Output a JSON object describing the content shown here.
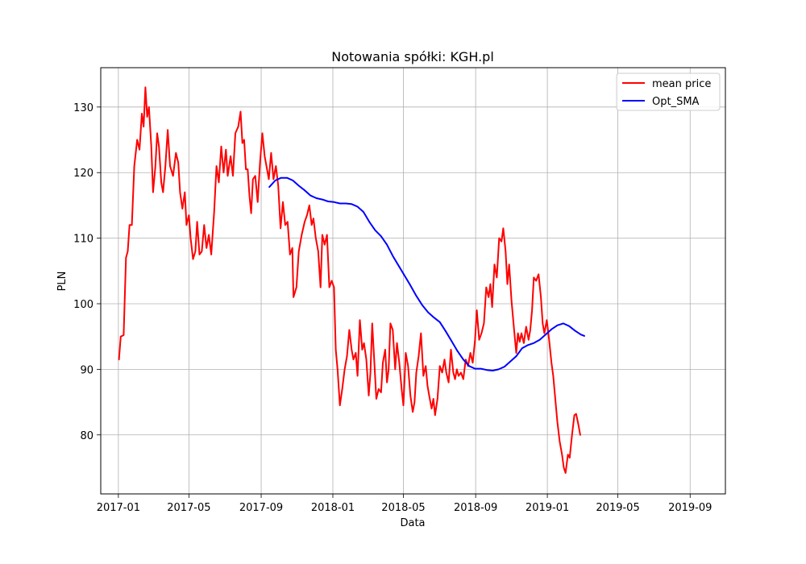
{
  "chart_data": {
    "type": "line",
    "title": "Notowania spółki: KGH.pl",
    "xlabel": "Data",
    "ylabel": "PLN",
    "xlim": [
      "2016-12-02",
      "2019-10-31"
    ],
    "ylim": [
      71,
      136
    ],
    "x_ticks": [
      "2017-01",
      "2017-05",
      "2017-09",
      "2018-01",
      "2018-05",
      "2018-09",
      "2019-01",
      "2019-05",
      "2019-09"
    ],
    "y_ticks": [
      80,
      90,
      100,
      110,
      120,
      130
    ],
    "grid": true,
    "legend_position": "upper right",
    "series": [
      {
        "name": "mean price",
        "color": "#ff0000",
        "points": [
          [
            "2017-01-02",
            91.5
          ],
          [
            "2017-01-05",
            95
          ],
          [
            "2017-01-10",
            95.2
          ],
          [
            "2017-01-14",
            107
          ],
          [
            "2017-01-17",
            108
          ],
          [
            "2017-01-20",
            112
          ],
          [
            "2017-01-24",
            112
          ],
          [
            "2017-01-28",
            121
          ],
          [
            "2017-02-02",
            125
          ],
          [
            "2017-02-06",
            123.5
          ],
          [
            "2017-02-10",
            129
          ],
          [
            "2017-02-13",
            127
          ],
          [
            "2017-02-16",
            133
          ],
          [
            "2017-02-19",
            128.5
          ],
          [
            "2017-02-22",
            130
          ],
          [
            "2017-02-26",
            124
          ],
          [
            "2017-03-01",
            117
          ],
          [
            "2017-03-05",
            121
          ],
          [
            "2017-03-08",
            126
          ],
          [
            "2017-03-11",
            124
          ],
          [
            "2017-03-15",
            118.5
          ],
          [
            "2017-03-18",
            117
          ],
          [
            "2017-03-22",
            121
          ],
          [
            "2017-03-26",
            126.5
          ],
          [
            "2017-03-30",
            121
          ],
          [
            "2017-04-04",
            119.5
          ],
          [
            "2017-04-09",
            123
          ],
          [
            "2017-04-13",
            121.5
          ],
          [
            "2017-04-16",
            117
          ],
          [
            "2017-04-20",
            114.5
          ],
          [
            "2017-04-24",
            117
          ],
          [
            "2017-04-27",
            112
          ],
          [
            "2017-05-01",
            113.5
          ],
          [
            "2017-05-04",
            110
          ],
          [
            "2017-05-08",
            106.8
          ],
          [
            "2017-05-12",
            108
          ],
          [
            "2017-05-15",
            112.5
          ],
          [
            "2017-05-19",
            107.5
          ],
          [
            "2017-05-23",
            108
          ],
          [
            "2017-05-27",
            112
          ],
          [
            "2017-05-31",
            108.5
          ],
          [
            "2017-06-04",
            110.5
          ],
          [
            "2017-06-08",
            107.5
          ],
          [
            "2017-06-13",
            114
          ],
          [
            "2017-06-17",
            121
          ],
          [
            "2017-06-21",
            118.5
          ],
          [
            "2017-06-25",
            124
          ],
          [
            "2017-06-29",
            120
          ],
          [
            "2017-07-03",
            123.5
          ],
          [
            "2017-07-06",
            119.5
          ],
          [
            "2017-07-11",
            122.5
          ],
          [
            "2017-07-15",
            119.5
          ],
          [
            "2017-07-19",
            126
          ],
          [
            "2017-07-24",
            127
          ],
          [
            "2017-07-28",
            129.3
          ],
          [
            "2017-07-31",
            124.5
          ],
          [
            "2017-08-03",
            125
          ],
          [
            "2017-08-06",
            120.5
          ],
          [
            "2017-08-09",
            120.5
          ],
          [
            "2017-08-12",
            116.5
          ],
          [
            "2017-08-15",
            113.8
          ],
          [
            "2017-08-18",
            119
          ],
          [
            "2017-08-22",
            119.5
          ],
          [
            "2017-08-26",
            115.5
          ],
          [
            "2017-08-30",
            121.5
          ],
          [
            "2017-09-03",
            126
          ],
          [
            "2017-09-07",
            122.5
          ],
          [
            "2017-09-11",
            120.5
          ],
          [
            "2017-09-14",
            119
          ],
          [
            "2017-09-18",
            123
          ],
          [
            "2017-09-22",
            119
          ],
          [
            "2017-09-26",
            121
          ],
          [
            "2017-09-30",
            118
          ],
          [
            "2017-10-04",
            111.5
          ],
          [
            "2017-10-08",
            115.5
          ],
          [
            "2017-10-12",
            112
          ],
          [
            "2017-10-16",
            112.5
          ],
          [
            "2017-10-20",
            107.5
          ],
          [
            "2017-10-24",
            108.5
          ],
          [
            "2017-10-26",
            101
          ],
          [
            "2017-10-31",
            102.5
          ],
          [
            "2017-11-04",
            108
          ],
          [
            "2017-11-09",
            110.5
          ],
          [
            "2017-11-14",
            112.5
          ],
          [
            "2017-11-18",
            113.5
          ],
          [
            "2017-11-22",
            115
          ],
          [
            "2017-11-26",
            112
          ],
          [
            "2017-11-29",
            113
          ],
          [
            "2017-12-03",
            110
          ],
          [
            "2017-12-07",
            108
          ],
          [
            "2017-12-11",
            102.5
          ],
          [
            "2017-12-14",
            110.5
          ],
          [
            "2017-12-18",
            109
          ],
          [
            "2017-12-22",
            110.5
          ],
          [
            "2017-12-26",
            102.5
          ],
          [
            "2017-12-30",
            103.5
          ],
          [
            "2018-01-03",
            102.5
          ],
          [
            "2018-01-06",
            93
          ],
          [
            "2018-01-09",
            90
          ],
          [
            "2018-01-13",
            84.5
          ],
          [
            "2018-01-17",
            87
          ],
          [
            "2018-01-21",
            90
          ],
          [
            "2018-01-25",
            92
          ],
          [
            "2018-01-29",
            96
          ],
          [
            "2018-02-02",
            93
          ],
          [
            "2018-02-05",
            91.5
          ],
          [
            "2018-02-09",
            92.5
          ],
          [
            "2018-02-12",
            89
          ],
          [
            "2018-02-16",
            97.5
          ],
          [
            "2018-02-20",
            93
          ],
          [
            "2018-02-23",
            94
          ],
          [
            "2018-02-27",
            91.5
          ],
          [
            "2018-03-03",
            86
          ],
          [
            "2018-03-06",
            89.5
          ],
          [
            "2018-03-09",
            97
          ],
          [
            "2018-03-13",
            90.5
          ],
          [
            "2018-03-16",
            85.5
          ],
          [
            "2018-03-20",
            87
          ],
          [
            "2018-03-24",
            86.5
          ],
          [
            "2018-03-27",
            91
          ],
          [
            "2018-03-31",
            93
          ],
          [
            "2018-04-03",
            88
          ],
          [
            "2018-04-06",
            90
          ],
          [
            "2018-04-09",
            97
          ],
          [
            "2018-04-13",
            96
          ],
          [
            "2018-04-17",
            90
          ],
          [
            "2018-04-20",
            94
          ],
          [
            "2018-04-24",
            91
          ],
          [
            "2018-04-28",
            87
          ],
          [
            "2018-05-01",
            84.5
          ],
          [
            "2018-05-05",
            92.5
          ],
          [
            "2018-05-09",
            90.5
          ],
          [
            "2018-05-13",
            86
          ],
          [
            "2018-05-17",
            83.5
          ],
          [
            "2018-05-20",
            85
          ],
          [
            "2018-05-23",
            89.5
          ],
          [
            "2018-05-27",
            92
          ],
          [
            "2018-05-31",
            95.5
          ],
          [
            "2018-06-04",
            89
          ],
          [
            "2018-06-08",
            90.5
          ],
          [
            "2018-06-11",
            87.5
          ],
          [
            "2018-06-14",
            86
          ],
          [
            "2018-06-18",
            84
          ],
          [
            "2018-06-21",
            85.5
          ],
          [
            "2018-06-24",
            83
          ],
          [
            "2018-06-28",
            85.5
          ],
          [
            "2018-07-02",
            90.5
          ],
          [
            "2018-07-06",
            89.5
          ],
          [
            "2018-07-10",
            91.5
          ],
          [
            "2018-07-13",
            89.5
          ],
          [
            "2018-07-17",
            88
          ],
          [
            "2018-07-21",
            93
          ],
          [
            "2018-07-25",
            89.5
          ],
          [
            "2018-07-28",
            88.5
          ],
          [
            "2018-07-31",
            90
          ],
          [
            "2018-08-03",
            89
          ],
          [
            "2018-08-07",
            89.5
          ],
          [
            "2018-08-11",
            88.5
          ],
          [
            "2018-08-15",
            91.5
          ],
          [
            "2018-08-19",
            90.5
          ],
          [
            "2018-08-23",
            92.5
          ],
          [
            "2018-08-27",
            91
          ],
          [
            "2018-08-31",
            94.5
          ],
          [
            "2018-09-03",
            99
          ],
          [
            "2018-09-07",
            94.5
          ],
          [
            "2018-09-11",
            95.5
          ],
          [
            "2018-09-15",
            97
          ],
          [
            "2018-09-19",
            102.5
          ],
          [
            "2018-09-23",
            101
          ],
          [
            "2018-09-26",
            103
          ],
          [
            "2018-09-29",
            99.5
          ],
          [
            "2018-10-03",
            106
          ],
          [
            "2018-10-07",
            104
          ],
          [
            "2018-10-11",
            110
          ],
          [
            "2018-10-15",
            109.5
          ],
          [
            "2018-10-18",
            111.5
          ],
          [
            "2018-10-22",
            108
          ],
          [
            "2018-10-25",
            103
          ],
          [
            "2018-10-28",
            106
          ],
          [
            "2018-11-01",
            100.5
          ],
          [
            "2018-11-05",
            96.5
          ],
          [
            "2018-11-09",
            92.5
          ],
          [
            "2018-11-12",
            95.5
          ],
          [
            "2018-11-15",
            94.2
          ],
          [
            "2018-11-18",
            95.5
          ],
          [
            "2018-11-22",
            94
          ],
          [
            "2018-11-26",
            96.5
          ],
          [
            "2018-11-30",
            94.5
          ],
          [
            "2018-12-03",
            96
          ],
          [
            "2018-12-06",
            99
          ],
          [
            "2018-12-09",
            104
          ],
          [
            "2018-12-13",
            103.5
          ],
          [
            "2018-12-17",
            104.5
          ],
          [
            "2018-12-21",
            101
          ],
          [
            "2018-12-24",
            97
          ],
          [
            "2018-12-27",
            95.5
          ],
          [
            "2018-12-31",
            97.5
          ],
          [
            "2019-01-04",
            94.5
          ],
          [
            "2019-01-08",
            91
          ],
          [
            "2019-01-11",
            89
          ],
          [
            "2019-01-15",
            85
          ],
          [
            "2019-01-18",
            82
          ],
          [
            "2019-01-22",
            79
          ],
          [
            "2019-01-26",
            77
          ],
          [
            "2019-01-29",
            75
          ],
          [
            "2019-02-01",
            74.2
          ],
          [
            "2019-02-05",
            77
          ],
          [
            "2019-02-08",
            76.5
          ],
          [
            "2019-02-12",
            80
          ],
          [
            "2019-02-16",
            83
          ],
          [
            "2019-02-19",
            83.2
          ],
          [
            "2019-02-23",
            81.5
          ],
          [
            "2019-02-26",
            80
          ]
        ]
      },
      {
        "name": "Opt_SMA",
        "color": "#0000ff",
        "points": [
          [
            "2017-09-15",
            117.8
          ],
          [
            "2017-09-25",
            118.8
          ],
          [
            "2017-10-05",
            119.2
          ],
          [
            "2017-10-15",
            119.2
          ],
          [
            "2017-10-25",
            118.8
          ],
          [
            "2017-11-04",
            118
          ],
          [
            "2017-11-14",
            117.3
          ],
          [
            "2017-11-24",
            116.5
          ],
          [
            "2017-12-04",
            116.1
          ],
          [
            "2017-12-14",
            115.9
          ],
          [
            "2017-12-24",
            115.6
          ],
          [
            "2018-01-03",
            115.5
          ],
          [
            "2018-01-13",
            115.3
          ],
          [
            "2018-01-23",
            115.3
          ],
          [
            "2018-02-02",
            115.2
          ],
          [
            "2018-02-12",
            114.8
          ],
          [
            "2018-02-22",
            114
          ],
          [
            "2018-03-04",
            112.5
          ],
          [
            "2018-03-14",
            111.2
          ],
          [
            "2018-03-24",
            110.3
          ],
          [
            "2018-04-03",
            109
          ],
          [
            "2018-04-13",
            107.3
          ],
          [
            "2018-04-23",
            105.8
          ],
          [
            "2018-05-03",
            104.3
          ],
          [
            "2018-05-13",
            102.8
          ],
          [
            "2018-05-23",
            101.2
          ],
          [
            "2018-06-02",
            99.8
          ],
          [
            "2018-06-12",
            98.7
          ],
          [
            "2018-06-22",
            97.9
          ],
          [
            "2018-07-02",
            97.2
          ],
          [
            "2018-07-12",
            95.8
          ],
          [
            "2018-07-22",
            94.3
          ],
          [
            "2018-08-01",
            92.8
          ],
          [
            "2018-08-11",
            91.5
          ],
          [
            "2018-08-21",
            90.5
          ],
          [
            "2018-08-31",
            90.1
          ],
          [
            "2018-09-10",
            90.1
          ],
          [
            "2018-09-20",
            89.9
          ],
          [
            "2018-09-30",
            89.8
          ],
          [
            "2018-10-10",
            90
          ],
          [
            "2018-10-20",
            90.4
          ],
          [
            "2018-10-30",
            91.2
          ],
          [
            "2018-11-09",
            92
          ],
          [
            "2018-11-19",
            93.2
          ],
          [
            "2018-11-29",
            93.7
          ],
          [
            "2018-12-09",
            94
          ],
          [
            "2018-12-19",
            94.5
          ],
          [
            "2018-12-29",
            95.3
          ],
          [
            "2019-01-08",
            96.1
          ],
          [
            "2019-01-18",
            96.7
          ],
          [
            "2019-01-28",
            97
          ],
          [
            "2019-02-07",
            96.6
          ],
          [
            "2019-02-17",
            95.9
          ],
          [
            "2019-02-27",
            95.3
          ],
          [
            "2019-03-05",
            95.1
          ]
        ]
      }
    ]
  }
}
